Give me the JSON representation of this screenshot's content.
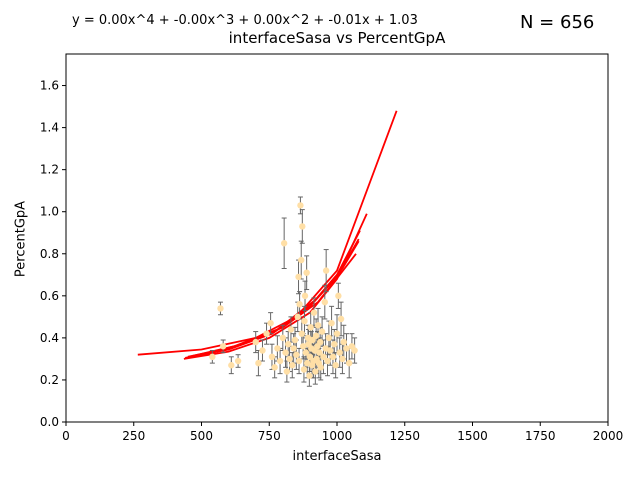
{
  "chart_data": {
    "type": "scatter",
    "title": "interfaceSasa vs PercentGpA",
    "xlabel": "interfaceSasa",
    "ylabel": "PercentGpA",
    "annotations": {
      "equation": "y = 0.00x^4 + -0.00x^3 + 0.00x^2 + -0.01x + 1.03",
      "n_label": "N = 656"
    },
    "xlim": [
      0,
      2000
    ],
    "ylim": [
      0,
      1.75
    ],
    "xticks": [
      0,
      250,
      500,
      750,
      1000,
      1250,
      1500,
      1750,
      2000
    ],
    "xtick_labels": [
      "0",
      "250",
      "500",
      "750",
      "1000",
      "1250",
      "1500",
      "1750",
      "2000"
    ],
    "yticks": [
      0.0,
      0.2,
      0.4,
      0.6,
      0.8,
      1.0,
      1.2,
      1.4,
      1.6
    ],
    "ytick_labels": [
      "0.0",
      "0.2",
      "0.4",
      "0.6",
      "0.8",
      "1.0",
      "1.2",
      "1.4",
      "1.6"
    ],
    "grid": false,
    "colors": {
      "points": "#ffdfa6",
      "error_bars": "#666666",
      "fit": "#ff0000"
    },
    "series": [
      {
        "type": "scatter_errorbars",
        "points": [
          {
            "x": 540,
            "y": 0.31,
            "err": 0.03
          },
          {
            "x": 570,
            "y": 0.54,
            "err": 0.03
          },
          {
            "x": 580,
            "y": 0.36,
            "err": 0.03
          },
          {
            "x": 610,
            "y": 0.27,
            "err": 0.04
          },
          {
            "x": 635,
            "y": 0.29,
            "err": 0.03
          },
          {
            "x": 700,
            "y": 0.38,
            "err": 0.05
          },
          {
            "x": 710,
            "y": 0.28,
            "err": 0.06
          },
          {
            "x": 725,
            "y": 0.34,
            "err": 0.05
          },
          {
            "x": 740,
            "y": 0.42,
            "err": 0.05
          },
          {
            "x": 755,
            "y": 0.47,
            "err": 0.05
          },
          {
            "x": 760,
            "y": 0.31,
            "err": 0.06
          },
          {
            "x": 770,
            "y": 0.26,
            "err": 0.05
          },
          {
            "x": 780,
            "y": 0.35,
            "err": 0.06
          },
          {
            "x": 790,
            "y": 0.29,
            "err": 0.06
          },
          {
            "x": 800,
            "y": 0.4,
            "err": 0.06
          },
          {
            "x": 805,
            "y": 0.85,
            "err": 0.12
          },
          {
            "x": 810,
            "y": 0.33,
            "err": 0.07
          },
          {
            "x": 815,
            "y": 0.24,
            "err": 0.05
          },
          {
            "x": 820,
            "y": 0.37,
            "err": 0.06
          },
          {
            "x": 825,
            "y": 0.3,
            "err": 0.06
          },
          {
            "x": 830,
            "y": 0.44,
            "err": 0.06
          },
          {
            "x": 835,
            "y": 0.27,
            "err": 0.06
          },
          {
            "x": 840,
            "y": 0.35,
            "err": 0.07
          },
          {
            "x": 845,
            "y": 0.39,
            "err": 0.06
          },
          {
            "x": 850,
            "y": 0.32,
            "err": 0.07
          },
          {
            "x": 855,
            "y": 0.5,
            "err": 0.07
          },
          {
            "x": 858,
            "y": 0.69,
            "err": 0.08
          },
          {
            "x": 860,
            "y": 0.29,
            "err": 0.06
          },
          {
            "x": 862,
            "y": 0.56,
            "err": 0.06
          },
          {
            "x": 865,
            "y": 1.03,
            "err": 0.04
          },
          {
            "x": 868,
            "y": 0.77,
            "err": 0.09
          },
          {
            "x": 870,
            "y": 0.42,
            "err": 0.07
          },
          {
            "x": 872,
            "y": 0.93,
            "err": 0.08
          },
          {
            "x": 875,
            "y": 0.36,
            "err": 0.06
          },
          {
            "x": 878,
            "y": 0.25,
            "err": 0.06
          },
          {
            "x": 880,
            "y": 0.48,
            "err": 0.07
          },
          {
            "x": 882,
            "y": 0.6,
            "err": 0.07
          },
          {
            "x": 885,
            "y": 0.33,
            "err": 0.07
          },
          {
            "x": 888,
            "y": 0.71,
            "err": 0.08
          },
          {
            "x": 890,
            "y": 0.28,
            "err": 0.07
          },
          {
            "x": 893,
            "y": 0.4,
            "err": 0.06
          },
          {
            "x": 895,
            "y": 0.37,
            "err": 0.07
          },
          {
            "x": 898,
            "y": 0.22,
            "err": 0.05
          },
          {
            "x": 900,
            "y": 0.31,
            "err": 0.07
          },
          {
            "x": 903,
            "y": 0.45,
            "err": 0.07
          },
          {
            "x": 905,
            "y": 0.35,
            "err": 0.08
          },
          {
            "x": 908,
            "y": 0.27,
            "err": 0.06
          },
          {
            "x": 910,
            "y": 0.39,
            "err": 0.07
          },
          {
            "x": 913,
            "y": 0.29,
            "err": 0.08
          },
          {
            "x": 915,
            "y": 0.52,
            "err": 0.07
          },
          {
            "x": 918,
            "y": 0.34,
            "err": 0.06
          },
          {
            "x": 920,
            "y": 0.24,
            "err": 0.06
          },
          {
            "x": 923,
            "y": 0.41,
            "err": 0.08
          },
          {
            "x": 925,
            "y": 0.3,
            "err": 0.07
          },
          {
            "x": 928,
            "y": 0.36,
            "err": 0.07
          },
          {
            "x": 930,
            "y": 0.46,
            "err": 0.08
          },
          {
            "x": 933,
            "y": 0.28,
            "err": 0.07
          },
          {
            "x": 935,
            "y": 0.33,
            "err": 0.07
          },
          {
            "x": 938,
            "y": 0.38,
            "err": 0.07
          },
          {
            "x": 940,
            "y": 0.26,
            "err": 0.06
          },
          {
            "x": 945,
            "y": 0.43,
            "err": 0.07
          },
          {
            "x": 950,
            "y": 0.31,
            "err": 0.08
          },
          {
            "x": 955,
            "y": 0.57,
            "err": 0.08
          },
          {
            "x": 958,
            "y": 0.35,
            "err": 0.07
          },
          {
            "x": 960,
            "y": 0.72,
            "err": 0.1
          },
          {
            "x": 965,
            "y": 0.29,
            "err": 0.07
          },
          {
            "x": 970,
            "y": 0.4,
            "err": 0.08
          },
          {
            "x": 975,
            "y": 0.34,
            "err": 0.07
          },
          {
            "x": 980,
            "y": 0.47,
            "err": 0.08
          },
          {
            "x": 985,
            "y": 0.31,
            "err": 0.08
          },
          {
            "x": 990,
            "y": 0.37,
            "err": 0.07
          },
          {
            "x": 995,
            "y": 0.27,
            "err": 0.06
          },
          {
            "x": 1000,
            "y": 0.42,
            "err": 0.09
          },
          {
            "x": 1005,
            "y": 0.6,
            "err": 0.06
          },
          {
            "x": 1010,
            "y": 0.33,
            "err": 0.07
          },
          {
            "x": 1015,
            "y": 0.49,
            "err": 0.08
          },
          {
            "x": 1020,
            "y": 0.3,
            "err": 0.07
          },
          {
            "x": 1025,
            "y": 0.38,
            "err": 0.08
          },
          {
            "x": 1035,
            "y": 0.35,
            "err": 0.07
          },
          {
            "x": 1045,
            "y": 0.28,
            "err": 0.07
          },
          {
            "x": 1055,
            "y": 0.36,
            "err": 0.06
          },
          {
            "x": 1065,
            "y": 0.34,
            "err": 0.06
          }
        ]
      },
      {
        "type": "fit_lines",
        "lines": [
          [
            [
              265,
              0.32
            ],
            [
              500,
              0.345
            ],
            [
              700,
              0.4
            ],
            [
              850,
              0.5
            ],
            [
              1000,
              0.72
            ],
            [
              1220,
              1.48
            ]
          ],
          [
            [
              435,
              0.3
            ],
            [
              600,
              0.335
            ],
            [
              750,
              0.4
            ],
            [
              900,
              0.52
            ],
            [
              1000,
              0.68
            ],
            [
              1110,
              0.99
            ]
          ],
          [
            [
              440,
              0.305
            ],
            [
              600,
              0.345
            ],
            [
              760,
              0.42
            ],
            [
              900,
              0.55
            ],
            [
              1000,
              0.7
            ],
            [
              1085,
              0.91
            ]
          ],
          [
            [
              450,
              0.31
            ],
            [
              600,
              0.35
            ],
            [
              760,
              0.42
            ],
            [
              900,
              0.55
            ],
            [
              1000,
              0.69
            ],
            [
              1080,
              0.87
            ]
          ],
          [
            [
              470,
              0.315
            ],
            [
              620,
              0.36
            ],
            [
              780,
              0.44
            ],
            [
              920,
              0.58
            ],
            [
              1020,
              0.73
            ],
            [
              1080,
              0.86
            ]
          ],
          [
            [
              500,
              0.32
            ],
            [
              650,
              0.37
            ],
            [
              800,
              0.45
            ],
            [
              930,
              0.57
            ],
            [
              1010,
              0.7
            ],
            [
              1070,
              0.8
            ]
          ]
        ]
      }
    ]
  }
}
